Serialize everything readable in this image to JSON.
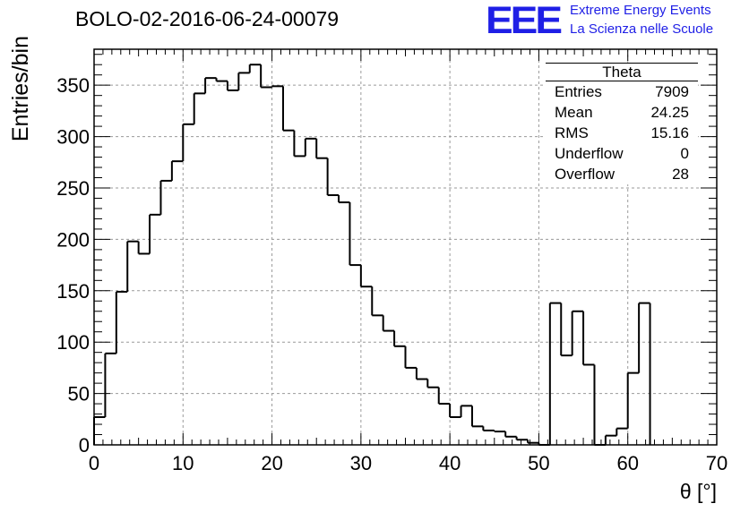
{
  "header": {
    "title": "BOLO-02-2016-06-24-00079",
    "logo": "EEE",
    "logo_line1": "Extreme Energy Events",
    "logo_line2": "La Scienza nelle Scuole",
    "brand_color": "#1f1fe6"
  },
  "stats": {
    "title": "Theta",
    "rows": [
      {
        "label": "Entries",
        "value": "7909"
      },
      {
        "label": "Mean",
        "value": "24.25"
      },
      {
        "label": "RMS",
        "value": "15.16"
      },
      {
        "label": "Underflow",
        "value": "0"
      },
      {
        "label": "Overflow",
        "value": "28"
      }
    ]
  },
  "chart_data": {
    "type": "bar",
    "style": "step-histogram",
    "title": "BOLO-02-2016-06-24-00079",
    "xlabel": "θ [°]",
    "ylabel": "Entries/bin",
    "xlim": [
      0,
      70
    ],
    "ylim": [
      0,
      385
    ],
    "xticks": [
      0,
      10,
      20,
      30,
      40,
      50,
      60,
      70
    ],
    "yticks": [
      0,
      50,
      100,
      150,
      200,
      250,
      300,
      350
    ],
    "grid": true,
    "legend": "top-right",
    "bin_width": 1.25,
    "values": [
      27,
      89,
      149,
      198,
      186,
      224,
      257,
      276,
      312,
      342,
      357,
      354,
      345,
      362,
      370,
      348,
      349,
      306,
      281,
      298,
      279,
      243,
      236,
      175,
      154,
      126,
      111,
      96,
      75,
      64,
      56,
      40,
      27,
      38,
      18,
      14,
      13,
      8,
      5,
      2,
      0,
      138,
      87,
      130,
      78,
      0,
      9,
      16,
      70,
      138
    ],
    "line_color": "#000000",
    "grid_color": "#9a9a9a"
  }
}
